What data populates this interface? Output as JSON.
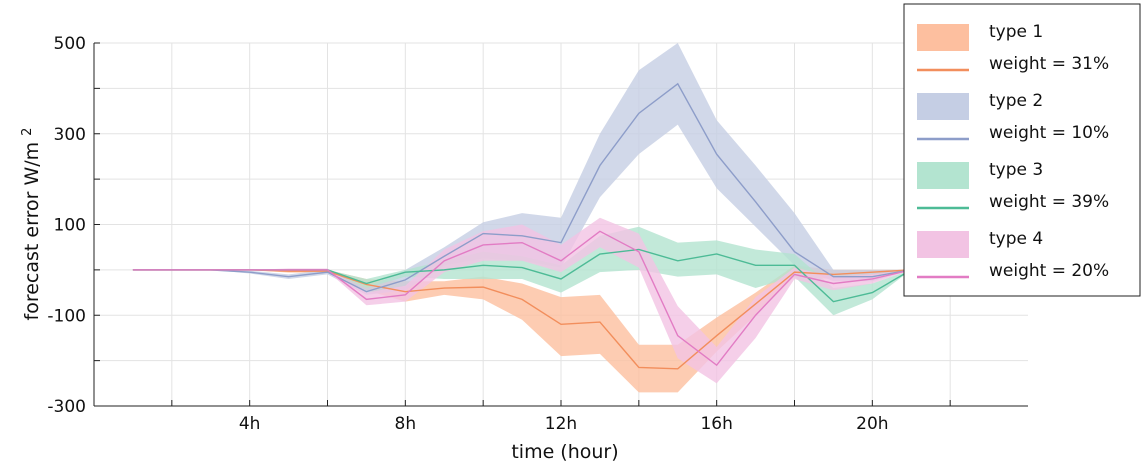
{
  "chart_data": {
    "type": "area",
    "title": "",
    "xlabel": "time (hour)",
    "ylabel": "forecast error W/m",
    "ylabel_superscript": "2",
    "xlim": [
      0,
      24
    ],
    "ylim": [
      -300,
      500
    ],
    "x_ticks": [
      4,
      8,
      12,
      16,
      20
    ],
    "x_tick_labels": [
      "4h",
      "8h",
      "12h",
      "16h",
      "20h"
    ],
    "x_minor_ticks": [
      2,
      6,
      10,
      14,
      18,
      22
    ],
    "y_ticks": [
      -300,
      -100,
      100,
      300,
      500
    ],
    "y_tick_labels": [
      "-300",
      "-100",
      "100",
      "300",
      "500"
    ],
    "y_minor_ticks": [
      -200,
      0,
      200,
      400
    ],
    "grid": true,
    "legend_position": "top-right",
    "x": [
      1,
      2,
      3,
      4,
      5,
      6,
      7,
      8,
      9,
      10,
      11,
      12,
      13,
      14,
      15,
      16,
      17,
      18,
      19,
      20,
      21
    ],
    "series": [
      {
        "name": "type 1",
        "weight_label": "weight = 31%",
        "color": "#f28e5c",
        "band_color": "#fdbf9f",
        "mean": [
          0,
          0,
          0,
          0,
          -3,
          -3,
          -32,
          -48,
          -40,
          -38,
          -65,
          -120,
          -115,
          -215,
          -218,
          -145,
          -75,
          -5,
          -10,
          -5,
          0
        ],
        "lower": [
          0,
          0,
          0,
          0,
          -6,
          -6,
          -45,
          -70,
          -55,
          -65,
          -110,
          -190,
          -185,
          -270,
          -270,
          -180,
          -100,
          -15,
          -20,
          -15,
          0
        ],
        "upper": [
          0,
          0,
          0,
          0,
          0,
          0,
          -20,
          -25,
          -25,
          -15,
          -30,
          -60,
          -55,
          -165,
          -165,
          -105,
          -50,
          10,
          0,
          0,
          0
        ]
      },
      {
        "name": "type 2",
        "weight_label": "weight = 10%",
        "color": "#8d9dc9",
        "band_color": "#c5cee4",
        "mean": [
          0,
          0,
          0,
          -5,
          -15,
          -5,
          -48,
          -22,
          30,
          80,
          75,
          60,
          230,
          345,
          410,
          255,
          150,
          40,
          -15,
          -15,
          0
        ],
        "lower": [
          0,
          0,
          0,
          -8,
          -20,
          -10,
          -55,
          -45,
          10,
          25,
          20,
          5,
          160,
          255,
          320,
          180,
          95,
          10,
          -25,
          -25,
          0
        ],
        "upper": [
          0,
          0,
          0,
          -2,
          -10,
          0,
          -40,
          0,
          50,
          105,
          125,
          115,
          300,
          440,
          500,
          330,
          230,
          125,
          0,
          0,
          0
        ]
      },
      {
        "name": "type 3",
        "weight_label": "weight = 39%",
        "color": "#4dbb96",
        "band_color": "#b3e4d0",
        "mean": [
          0,
          0,
          0,
          0,
          0,
          0,
          -30,
          -5,
          0,
          10,
          5,
          -20,
          35,
          45,
          20,
          35,
          10,
          10,
          -70,
          -50,
          0
        ],
        "lower": [
          0,
          0,
          0,
          0,
          0,
          0,
          -40,
          -15,
          -20,
          -20,
          -20,
          -50,
          -5,
          0,
          -15,
          -10,
          -40,
          -15,
          -100,
          -65,
          0
        ],
        "upper": [
          0,
          0,
          0,
          0,
          0,
          0,
          -20,
          0,
          20,
          40,
          30,
          10,
          75,
          95,
          60,
          65,
          45,
          35,
          -40,
          -30,
          0
        ]
      },
      {
        "name": "type 4",
        "weight_label": "weight = 20%",
        "color": "#e27cc4",
        "band_color": "#f2c3e3",
        "mean": [
          0,
          0,
          0,
          0,
          0,
          0,
          -65,
          -55,
          20,
          55,
          60,
          20,
          85,
          40,
          -145,
          -210,
          -100,
          -10,
          -30,
          -20,
          0
        ],
        "lower": [
          0,
          0,
          0,
          0,
          -3,
          -3,
          -78,
          -70,
          -5,
          20,
          20,
          -5,
          50,
          5,
          -195,
          -250,
          -150,
          -20,
          -45,
          -30,
          0
        ],
        "upper": [
          0,
          0,
          0,
          0,
          3,
          3,
          -50,
          -35,
          45,
          85,
          100,
          55,
          115,
          80,
          -80,
          -170,
          -60,
          5,
          -15,
          -10,
          0
        ]
      }
    ]
  }
}
